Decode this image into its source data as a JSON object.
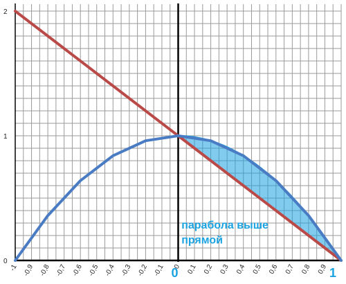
{
  "chart_data": {
    "type": "line",
    "xlim": [
      -1,
      1
    ],
    "ylim": [
      0,
      2
    ],
    "grid": true,
    "x_tick_labels": [
      "-1",
      "-0,9",
      "-0,8",
      "-0,7",
      "-0,6",
      "-0,5",
      "-0,4",
      "-0,3",
      "-0,2",
      "-0,1",
      "0",
      "0,1",
      "0,2",
      "0,3",
      "0,4",
      "0,5",
      "0,6",
      "0,7",
      "0,8",
      "0,9"
    ],
    "y_tick_labels": [
      "0",
      "1",
      "2"
    ],
    "series": [
      {
        "color": "#b94a48",
        "x": [
          -1,
          1
        ],
        "y": [
          2,
          0
        ]
      },
      {
        "color": "#4a7cc4",
        "x": [
          -1,
          -0.8,
          -0.6,
          -0.4,
          -0.2,
          0,
          0.2,
          0.4,
          0.6,
          0.8,
          1
        ],
        "y": [
          0,
          0.36,
          0.64,
          0.84,
          0.96,
          1,
          0.96,
          0.84,
          0.64,
          0.36,
          0
        ]
      }
    ],
    "shaded_region": {
      "x_from": 0,
      "x_to": 1,
      "between": "parabola and line",
      "color": "#1aa3e0"
    },
    "annotations": {
      "note_line1": "парабола выше",
      "note_line2": "прямой",
      "left_bound": "0",
      "right_bound": "1"
    }
  }
}
